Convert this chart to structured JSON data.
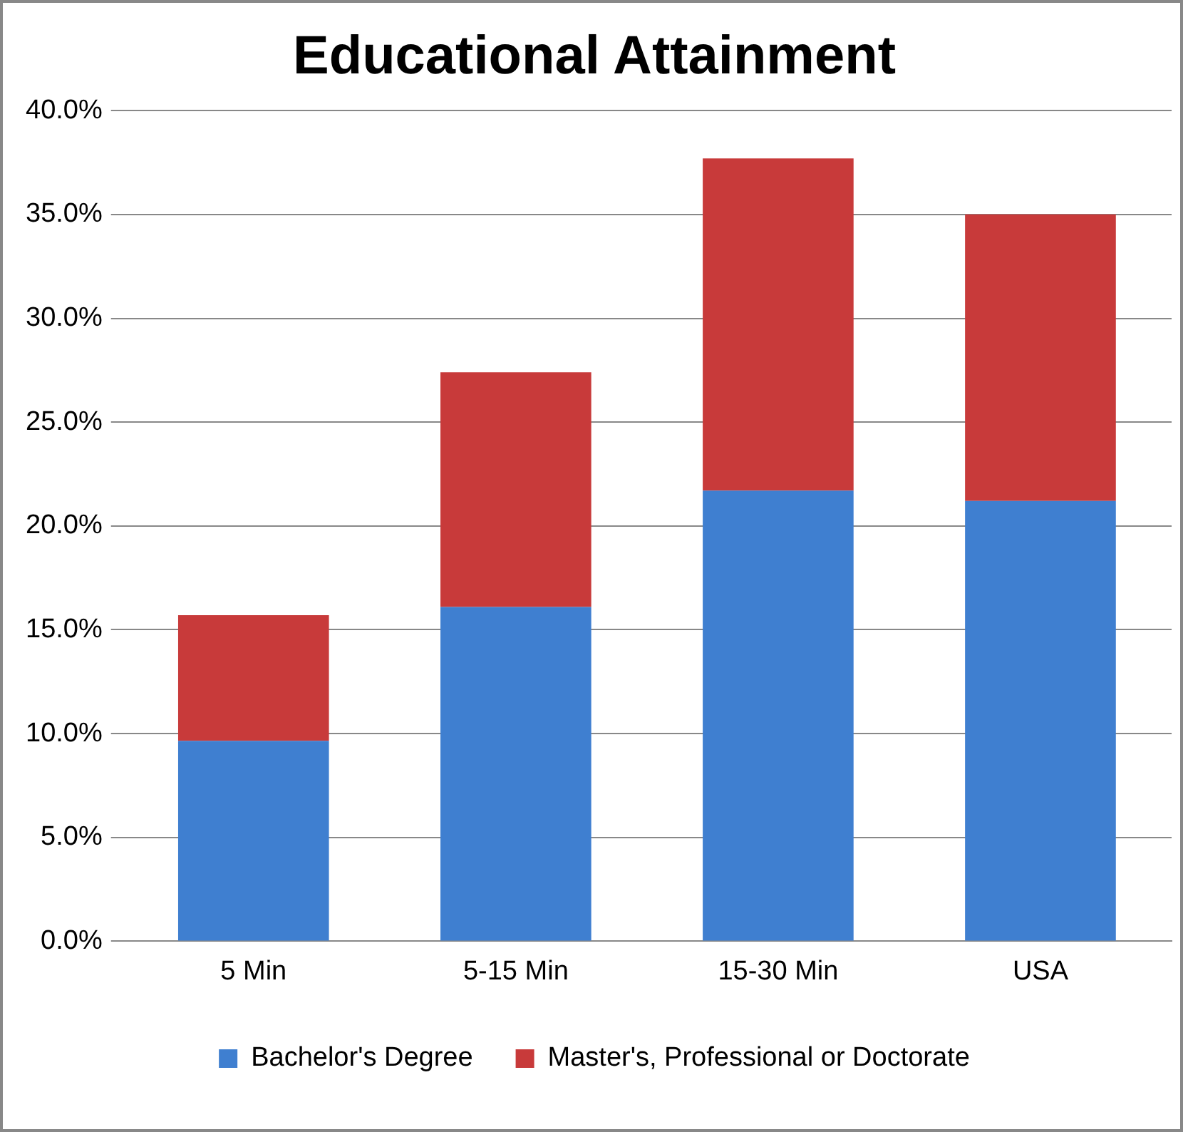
{
  "chart_data": {
    "type": "bar",
    "title": "Educational Attainment",
    "stacked": true,
    "grid": "y",
    "legend": "bottom",
    "categories": [
      "5 Min",
      "5-15 Min",
      "15-30 Min",
      "USA"
    ],
    "series": [
      {
        "name": "Bachelor's Degree",
        "color": "#3f7fd0",
        "values": [
          9.65,
          16.1,
          21.7,
          21.2
        ]
      },
      {
        "name": "Master's, Professional or Doctorate",
        "color": "#c83a3a",
        "values": [
          6.05,
          11.3,
          16.0,
          13.8
        ]
      }
    ],
    "ylim": [
      0,
      40
    ],
    "yticks": [
      {
        "value": 0,
        "label": "0.0%"
      },
      {
        "value": 5,
        "label": "5.0%"
      },
      {
        "value": 10,
        "label": "10.0%"
      },
      {
        "value": 15,
        "label": "15.0%"
      },
      {
        "value": 20,
        "label": "20.0%"
      },
      {
        "value": 25,
        "label": "25.0%"
      },
      {
        "value": 30,
        "label": "30.0%"
      },
      {
        "value": 35,
        "label": "35.0%"
      },
      {
        "value": 40,
        "label": "40.0%"
      }
    ]
  }
}
